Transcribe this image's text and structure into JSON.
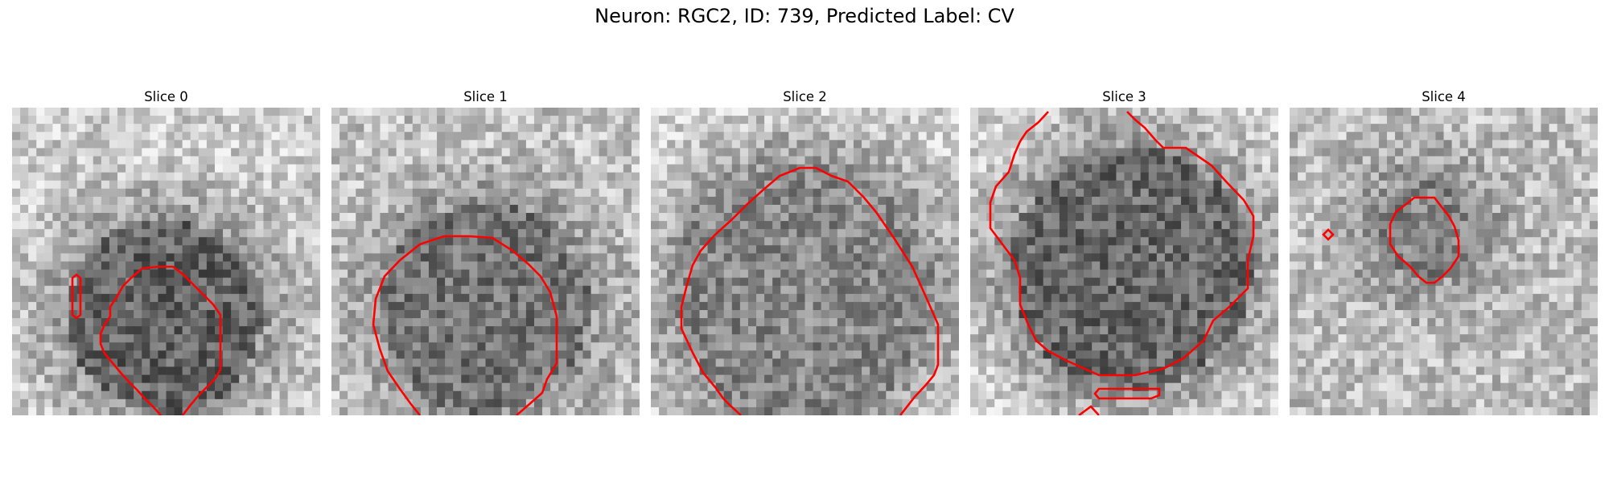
{
  "figure": {
    "title": "Neuron: RGC2, ID: 739, Predicted Label: CV"
  },
  "colors": {
    "contour": "#ff0000",
    "colormap": "gray"
  },
  "panels": [
    {
      "title": "Slice 0"
    },
    {
      "title": "Slice 1"
    },
    {
      "title": "Slice 2"
    },
    {
      "title": "Slice 3"
    },
    {
      "title": "Slice 4"
    }
  ]
}
